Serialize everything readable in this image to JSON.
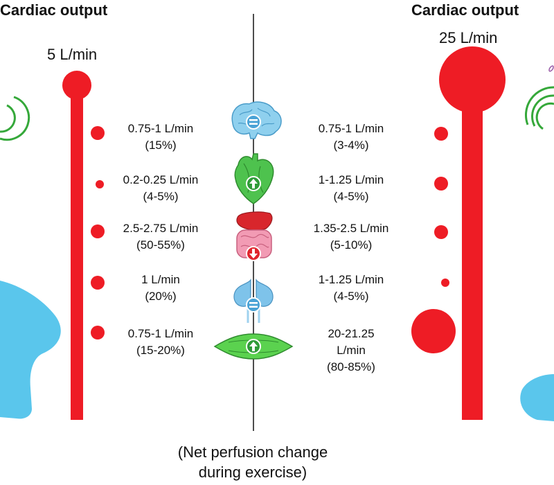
{
  "colors": {
    "flow": "#ee1c25",
    "figure": "#5ac6ec",
    "arc": "#35a83a",
    "brain": "#8fd0ee",
    "heart": "#4ec24e",
    "liver": "#d8262c",
    "intestine": "#f29bb4",
    "kidney": "#7ec3ea",
    "muscle": "#5bd24f"
  },
  "rest": {
    "title": "Cardiac output",
    "total": "5 L/min",
    "values": [
      {
        "flow": "0.75-1 L/min",
        "share": "(15%)"
      },
      {
        "flow": "0.2-0.25 L/min",
        "share": "(4-5%)"
      },
      {
        "flow": "2.5-2.75 L/min",
        "share": "(50-55%)"
      },
      {
        "flow": "1 L/min",
        "share": "(20%)"
      },
      {
        "flow": "0.75-1 L/min",
        "share": "(15-20%)"
      }
    ]
  },
  "exercise": {
    "title": "Cardiac output",
    "total": "25 L/min",
    "values": [
      {
        "flow": "0.75-1 L/min",
        "share": "(3-4%)"
      },
      {
        "flow": "1-1.25 L/min",
        "share": "(4-5%)"
      },
      {
        "flow": "1.35-2.5 L/min",
        "share": "(5-10%)"
      },
      {
        "flow": "1-1.25 L/min",
        "share": "(4-5%)"
      },
      {
        "flow": "20-21.25",
        "flow2": "L/min",
        "share": "(80-85%)"
      }
    ]
  },
  "organs": [
    {
      "name": "brain-icon",
      "change": "equal"
    },
    {
      "name": "heart-icon",
      "change": "up"
    },
    {
      "name": "liver-intestine-icon",
      "change": "down"
    },
    {
      "name": "kidneys-icon",
      "change": "equal"
    },
    {
      "name": "muscle-icon",
      "change": "up"
    }
  ],
  "footer": {
    "line1": "(Net perfusion change",
    "line2": "during exercise)"
  }
}
